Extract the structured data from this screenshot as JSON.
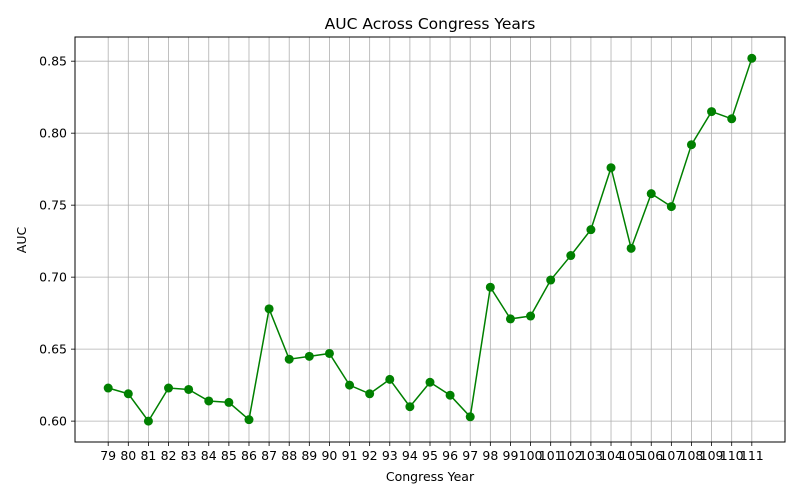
{
  "chart_data": {
    "type": "line",
    "title": "AUC Across Congress Years",
    "xlabel": "Congress Year",
    "ylabel": "AUC",
    "x": [
      79,
      80,
      81,
      82,
      83,
      84,
      85,
      86,
      87,
      88,
      89,
      90,
      91,
      92,
      93,
      94,
      95,
      96,
      97,
      98,
      99,
      100,
      101,
      102,
      103,
      104,
      105,
      106,
      107,
      108,
      109,
      110,
      111
    ],
    "x_tick_labels": [
      "79",
      "80",
      "81",
      "82",
      "83",
      "84",
      "85",
      "86",
      "87",
      "88",
      "89",
      "90",
      "91",
      "92",
      "93",
      "94",
      "95",
      "96",
      "97",
      "98",
      "99",
      "100",
      "101",
      "102",
      "103",
      "104",
      "105",
      "106",
      "107",
      "108",
      "109",
      "110",
      "111"
    ],
    "series": [
      {
        "values": [
          0.623,
          0.619,
          0.6,
          0.623,
          0.622,
          0.614,
          0.613,
          0.601,
          0.678,
          0.643,
          0.645,
          0.647,
          0.625,
          0.619,
          0.629,
          0.61,
          0.627,
          0.618,
          0.603,
          0.693,
          0.671,
          0.673,
          0.698,
          0.715,
          0.733,
          0.776,
          0.72,
          0.758,
          0.749,
          0.792,
          0.815,
          0.81,
          0.852
        ]
      }
    ],
    "yticks": [
      0.6,
      0.65,
      0.7,
      0.75,
      0.8,
      0.85
    ],
    "y_tick_labels": [
      "0.60",
      "0.65",
      "0.70",
      "0.75",
      "0.80",
      "0.85"
    ],
    "ylim": [
      0.5855,
      0.8668
    ],
    "xlim": [
      77.35,
      112.65
    ],
    "grid": true,
    "colors": {
      "line": "#008000",
      "grid": "#b0b0b0",
      "axes": "#000000"
    }
  }
}
